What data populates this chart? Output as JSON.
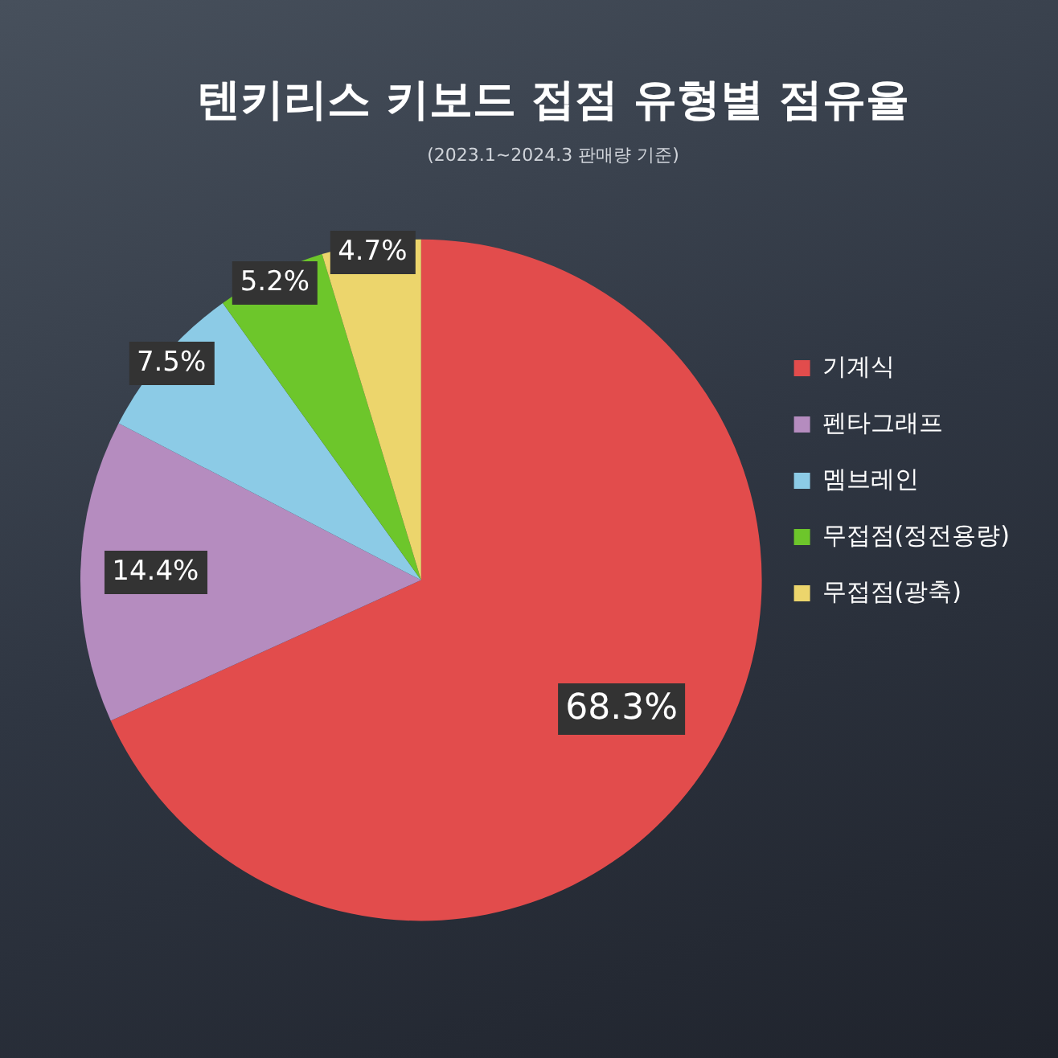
{
  "chart_data": {
    "type": "pie",
    "title": "텐키리스 키보드 접점 유형별 점유율",
    "subtitle": "(2023.1~2024.3 판매량 기준)",
    "categories": [
      "기계식",
      "펜타그래프",
      "멤브레인",
      "무접점(정전용량)",
      "무접점(광축)"
    ],
    "values": [
      68.3,
      14.4,
      7.5,
      5.2,
      4.7
    ],
    "colors": [
      "#e24c4c",
      "#b58cbf",
      "#8ccbe6",
      "#6dc62b",
      "#ecd56c"
    ],
    "value_labels": [
      "68.3%",
      "14.4%",
      "7.5%",
      "5.2%",
      "4.7%"
    ],
    "legend": "right"
  }
}
